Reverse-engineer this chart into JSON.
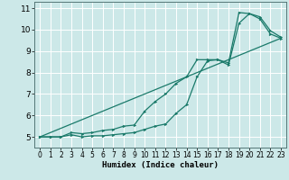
{
  "xlabel": "Humidex (Indice chaleur)",
  "background_color": "#cce8e8",
  "grid_color": "#e8f8f8",
  "line_color": "#1a7a6a",
  "xlim": [
    -0.5,
    23.5
  ],
  "ylim": [
    4.5,
    11.3
  ],
  "xticks": [
    0,
    1,
    2,
    3,
    4,
    5,
    6,
    7,
    8,
    9,
    10,
    11,
    12,
    13,
    14,
    15,
    16,
    17,
    18,
    19,
    20,
    21,
    22,
    23
  ],
  "yticks": [
    5,
    6,
    7,
    8,
    9,
    10,
    11
  ],
  "line1_x": [
    0,
    1,
    2,
    3,
    4,
    5,
    6,
    7,
    8,
    9,
    10,
    11,
    12,
    13,
    14,
    15,
    16,
    17,
    18,
    19,
    20,
    21,
    22,
    23
  ],
  "line1_y": [
    5.0,
    5.0,
    5.0,
    5.1,
    5.0,
    5.05,
    5.05,
    5.1,
    5.15,
    5.2,
    5.35,
    5.5,
    5.6,
    6.1,
    6.5,
    7.8,
    8.55,
    8.6,
    8.45,
    10.8,
    10.75,
    10.6,
    9.95,
    9.65
  ],
  "line2_x": [
    0,
    1,
    2,
    3,
    4,
    5,
    6,
    7,
    8,
    9,
    10,
    11,
    12,
    13,
    14,
    15,
    16,
    17,
    18,
    19,
    20,
    21,
    22,
    23
  ],
  "line2_y": [
    5.0,
    5.0,
    5.0,
    5.2,
    5.15,
    5.2,
    5.3,
    5.35,
    5.5,
    5.55,
    6.2,
    6.65,
    7.0,
    7.5,
    7.8,
    8.6,
    8.6,
    8.6,
    8.35,
    10.3,
    10.75,
    10.5,
    9.8,
    9.6
  ],
  "line3_x": [
    0,
    23
  ],
  "line3_y": [
    5.0,
    9.6
  ],
  "xlabel_fontsize": 6.5,
  "tick_fontsize_x": 5.5,
  "tick_fontsize_y": 6.5
}
